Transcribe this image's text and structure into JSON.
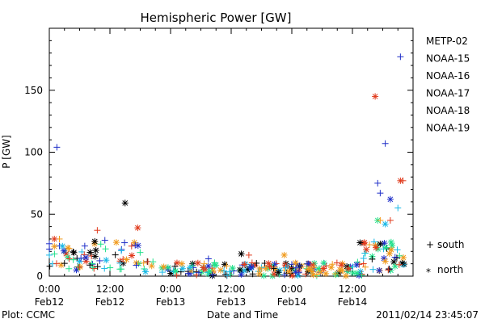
{
  "chart_data": {
    "type": "scatter",
    "title": "Hemispheric Power [GW]",
    "xlabel": "Date and Time",
    "ylabel": "P [GW]",
    "ylim": [
      0,
      200
    ],
    "y_ticks": [
      0,
      50,
      100,
      150
    ],
    "xlim": [
      "2011-02-12 00:00",
      "2011-02-15 00:00"
    ],
    "x_ticks": [
      {
        "time": "2011-02-12 00:00",
        "line1": "0:00",
        "line2": "Feb12"
      },
      {
        "time": "2011-02-12 12:00",
        "line1": "12:00",
        "line2": "Feb12"
      },
      {
        "time": "2011-02-13 00:00",
        "line1": "0:00",
        "line2": "Feb13"
      },
      {
        "time": "2011-02-13 12:00",
        "line1": "12:00",
        "line2": "Feb13"
      },
      {
        "time": "2011-02-14 00:00",
        "line1": "0:00",
        "line2": "Feb14"
      },
      {
        "time": "2011-02-14 12:00",
        "line1": "12:00",
        "line2": "Feb14"
      }
    ],
    "legend_position": "right",
    "grid": false,
    "series": [
      {
        "name": "METP-02",
        "color": "#000000"
      },
      {
        "name": "NOAA-15",
        "color": "#1f2fc8"
      },
      {
        "name": "NOAA-16",
        "color": "#19b8e6"
      },
      {
        "name": "NOAA-17",
        "color": "#20e08a"
      },
      {
        "name": "NOAA-18",
        "color": "#f09a1c"
      },
      {
        "name": "NOAA-19",
        "color": "#e03a1c"
      }
    ],
    "marker_legend": [
      {
        "symbol": "+",
        "label": "south"
      },
      {
        "symbol": "*",
        "label": "north"
      }
    ],
    "notable_points": [
      {
        "series": "NOAA-15",
        "time": "2011-02-12 01:30",
        "value": 104,
        "marker": "+"
      },
      {
        "series": "METP-02",
        "time": "2011-02-12 15:00",
        "value": 59,
        "marker": "*"
      },
      {
        "series": "NOAA-19",
        "time": "2011-02-12 17:30",
        "value": 39,
        "marker": "*"
      },
      {
        "series": "NOAA-19",
        "time": "2011-02-14 16:30",
        "value": 145,
        "marker": "*"
      },
      {
        "series": "NOAA-15",
        "time": "2011-02-14 18:30",
        "value": 107,
        "marker": "+"
      },
      {
        "series": "NOAA-15",
        "time": "2011-02-14 21:30",
        "value": 177,
        "marker": "+"
      },
      {
        "series": "NOAA-15",
        "time": "2011-02-14 17:00",
        "value": 75,
        "marker": "+"
      },
      {
        "series": "NOAA-15",
        "time": "2011-02-14 17:30",
        "value": 67,
        "marker": "+"
      },
      {
        "series": "NOAA-15",
        "time": "2011-02-14 19:30",
        "value": 62,
        "marker": "*"
      },
      {
        "series": "NOAA-16",
        "time": "2011-02-14 21:00",
        "value": 55,
        "marker": "+"
      },
      {
        "series": "NOAA-19",
        "time": "2011-02-14 21:30",
        "value": 77,
        "marker": "*"
      },
      {
        "series": "NOAA-19",
        "time": "2011-02-14 22:00",
        "value": 77,
        "marker": "+"
      },
      {
        "series": "NOAA-17",
        "time": "2011-02-14 17:00",
        "value": 45,
        "marker": "*"
      },
      {
        "series": "NOAA-18",
        "time": "2011-02-14 17:30",
        "value": 45,
        "marker": "+"
      },
      {
        "series": "NOAA-19",
        "time": "2011-02-14 19:30",
        "value": 45,
        "marker": "+"
      },
      {
        "series": "NOAA-16",
        "time": "2011-02-14 18:30",
        "value": 42,
        "marker": "*"
      },
      {
        "series": "NOAA-19",
        "time": "2011-02-12 09:30",
        "value": 37,
        "marker": "+"
      },
      {
        "series": "NOAA-18",
        "time": "2011-02-12 02:00",
        "value": 30,
        "marker": "+"
      },
      {
        "series": "NOAA-19",
        "time": "2011-02-12 01:00",
        "value": 30,
        "marker": "*"
      },
      {
        "series": "NOAA-15",
        "time": "2011-02-12 11:00",
        "value": 29,
        "marker": "+"
      },
      {
        "series": "METP-02",
        "time": "2011-02-12 09:00",
        "value": 28,
        "marker": "*"
      },
      {
        "series": "METP-02",
        "time": "2011-02-14 13:30",
        "value": 27,
        "marker": "*"
      },
      {
        "series": "METP-02",
        "time": "2011-02-14 17:30",
        "value": 26,
        "marker": "*"
      },
      {
        "series": "NOAA-15",
        "time": "2011-02-12 17:00",
        "value": 25,
        "marker": "+"
      },
      {
        "series": "METP-02",
        "time": "2011-02-13 14:00",
        "value": 18,
        "marker": "*"
      },
      {
        "series": "NOAA-19",
        "time": "2011-02-13 15:30",
        "value": 17,
        "marker": "+"
      },
      {
        "series": "NOAA-18",
        "time": "2011-02-13 22:30",
        "value": 17,
        "marker": "*"
      },
      {
        "series": "NOAA-15",
        "time": "2011-02-13 07:30",
        "value": 14,
        "marker": "+"
      },
      {
        "series": "NOAA-18",
        "time": "2011-02-14 18:30",
        "value": 12,
        "marker": "*"
      }
    ],
    "background_band": "dense cluster of '+' and '*' markers from all series, roughly 5–30 GW on Feb 12, dropping to 0–12 GW from Feb 12 18:00 through Feb 14 12:00, rising to 5–30 GW after Feb 14 14:00"
  },
  "footer": {
    "left": "Plot: CCMC",
    "right": "2011/02/14 23:45:07"
  }
}
